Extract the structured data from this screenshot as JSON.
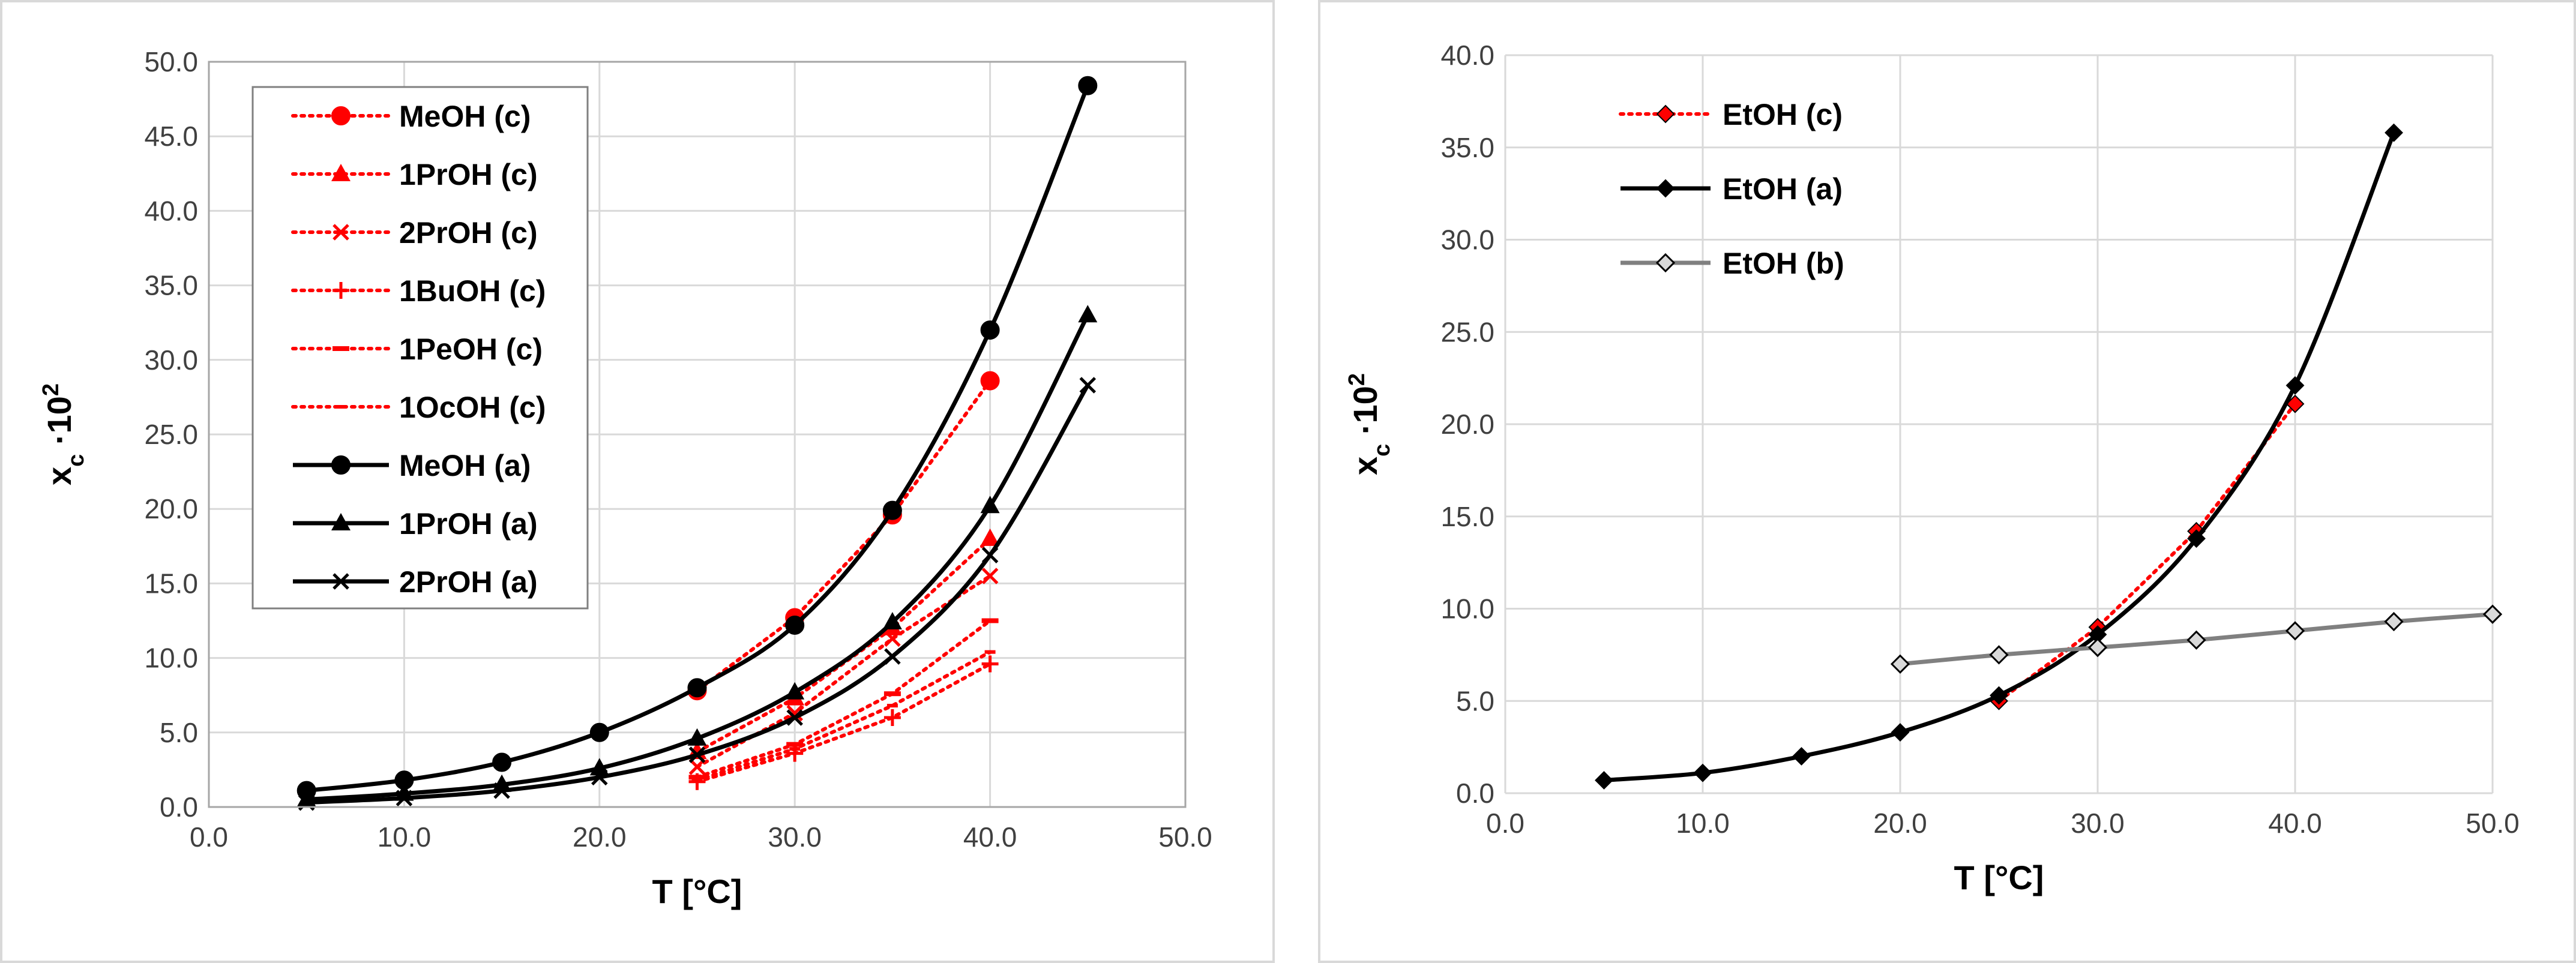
{
  "chart_data": [
    {
      "type": "line",
      "title": "",
      "xlabel": "T [°C]",
      "ylabel_main": "x",
      "ylabel_sub": "c",
      "ylabel_tail": " ·10",
      "ylabel_sup": "2",
      "xlim": [
        0,
        50
      ],
      "ylim": [
        0,
        50
      ],
      "xticks": [
        "0.0",
        "10.0",
        "20.0",
        "30.0",
        "40.0",
        "50.0"
      ],
      "yticks": [
        "0.0",
        "5.0",
        "10.0",
        "15.0",
        "20.0",
        "25.0",
        "30.0",
        "35.0",
        "40.0",
        "45.0",
        "50.0"
      ],
      "grid": true,
      "legend_position": "top-left",
      "series": [
        {
          "name": "MeOH (c)",
          "color": "#ff0000",
          "style": "dotted",
          "marker": "circle",
          "x": [
            25,
            30,
            35,
            40
          ],
          "y": [
            7.8,
            12.7,
            19.6,
            28.6
          ]
        },
        {
          "name": "1PrOH (c)",
          "color": "#ff0000",
          "style": "dotted",
          "marker": "triangle",
          "x": [
            25,
            30,
            35,
            40
          ],
          "y": [
            3.7,
            7.3,
            12.0,
            18.0
          ]
        },
        {
          "name": "2PrOH (c)",
          "color": "#ff0000",
          "style": "dotted",
          "marker": "x",
          "x": [
            25,
            30,
            35,
            40
          ],
          "y": [
            2.7,
            6.3,
            11.3,
            15.5
          ]
        },
        {
          "name": "1BuOH (c)",
          "color": "#ff0000",
          "style": "dotted",
          "marker": "plus",
          "x": [
            25,
            30,
            35,
            40
          ],
          "y": [
            1.7,
            3.6,
            6.0,
            9.6
          ]
        },
        {
          "name": "1PeOH (c)",
          "color": "#ff0000",
          "style": "dotted",
          "marker": "dash",
          "x": [
            25,
            30,
            35,
            40
          ],
          "y": [
            2.0,
            4.2,
            7.6,
            12.5
          ]
        },
        {
          "name": "1OcOH (c)",
          "color": "#ff0000",
          "style": "dotted",
          "marker": "smalldash",
          "x": [
            25,
            30,
            35,
            40
          ],
          "y": [
            1.8,
            3.9,
            6.8,
            10.4
          ]
        },
        {
          "name": "MeOH (a)",
          "color": "#000000",
          "style": "solid",
          "marker": "circle",
          "x": [
            5,
            10,
            15,
            20,
            25,
            30,
            35,
            40,
            45
          ],
          "y": [
            1.1,
            1.8,
            3.0,
            5.0,
            8.0,
            12.2,
            19.9,
            32.0,
            48.4
          ]
        },
        {
          "name": "1PrOH (a)",
          "color": "#000000",
          "style": "solid",
          "marker": "triangle",
          "x": [
            5,
            10,
            15,
            20,
            25,
            30,
            35,
            40,
            45
          ],
          "y": [
            0.5,
            0.9,
            1.5,
            2.6,
            4.6,
            7.7,
            12.4,
            20.2,
            33.0
          ]
        },
        {
          "name": "2PrOH (a)",
          "color": "#000000",
          "style": "solid",
          "marker": "x",
          "x": [
            5,
            10,
            15,
            20,
            25,
            30,
            35,
            40,
            45
          ],
          "y": [
            0.3,
            0.6,
            1.1,
            2.0,
            3.5,
            6.0,
            10.1,
            16.9,
            28.3
          ]
        }
      ]
    },
    {
      "type": "line",
      "title": "",
      "xlabel": "T [°C]",
      "ylabel_main": "x",
      "ylabel_sub": "c",
      "ylabel_tail": " ·10",
      "ylabel_sup": "2",
      "xlim": [
        0,
        50
      ],
      "ylim": [
        0,
        40
      ],
      "xticks": [
        "0.0",
        "10.0",
        "20.0",
        "30.0",
        "40.0",
        "50.0"
      ],
      "yticks": [
        "0.0",
        "5.0",
        "10.0",
        "15.0",
        "20.0",
        "25.0",
        "30.0",
        "35.0",
        "40.0"
      ],
      "grid": true,
      "legend_position": "top-left",
      "series": [
        {
          "name": "EtOH (c)",
          "color": "#ff0000",
          "style": "dotted",
          "marker": "diamond",
          "x": [
            25,
            30,
            35,
            40
          ],
          "y": [
            5.0,
            9.0,
            14.2,
            21.1
          ]
        },
        {
          "name": "EtOH (a)",
          "color": "#000000",
          "style": "solid",
          "marker": "diamond",
          "x": [
            5,
            10,
            15,
            20,
            25,
            30,
            35,
            40,
            45
          ],
          "y": [
            0.7,
            1.1,
            2.0,
            3.3,
            5.3,
            8.6,
            13.8,
            22.1,
            35.8
          ]
        },
        {
          "name": "EtOH (b)",
          "color": "#808080",
          "style": "solid",
          "marker": "diamond-open",
          "x": [
            20,
            25,
            30,
            35,
            40,
            45,
            50
          ],
          "y": [
            7.0,
            7.5,
            7.9,
            8.3,
            8.8,
            9.3,
            9.7
          ]
        }
      ]
    }
  ]
}
